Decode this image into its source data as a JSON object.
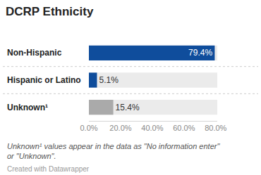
{
  "chart_data": {
    "type": "bar",
    "title": "DCRP Ethnicity",
    "orientation": "horizontal",
    "categories": [
      "Non-Hispanic",
      "Hispanic or Latino",
      "Unknown¹"
    ],
    "values": [
      79.4,
      5.1,
      15.4
    ],
    "value_labels": [
      "79.4%",
      "5.1%",
      "15.4%"
    ],
    "colors": [
      "#0f4d9c",
      "#0f4d9c",
      "#aaaaaa"
    ],
    "data_labels": true,
    "xlim": [
      0,
      81
    ],
    "xticks": [
      {
        "value": 0,
        "label": "0.0%"
      },
      {
        "value": 20,
        "label": "20.0%"
      },
      {
        "value": 40,
        "label": "40.0%"
      },
      {
        "value": 60,
        "label": "60.0%"
      },
      {
        "value": 80,
        "label": "80.0%"
      }
    ],
    "grid": false,
    "annotations": [
      "Unknown¹ values appear in the data as \"No information enter\" or \"Unknown\".",
      "Created with Datawrapper"
    ]
  }
}
